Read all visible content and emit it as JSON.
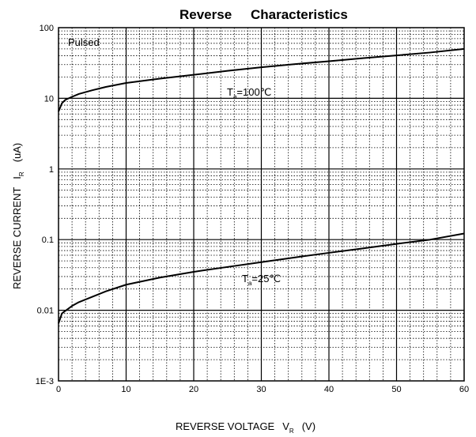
{
  "chart_data": {
    "type": "line",
    "title_left": "Reverse",
    "title_right": "Characteristics",
    "xlabel": "REVERSE VOLTAGE",
    "xlabel_symbol": "V",
    "xlabel_sub": "R",
    "xlabel_unit": "(V)",
    "ylabel": "REVERSE CURRENT",
    "ylabel_symbol": "I",
    "ylabel_sub": "R",
    "ylabel_unit": "(uA)",
    "xlim": [
      0,
      60
    ],
    "ylim": [
      0.001,
      100
    ],
    "yscale": "log",
    "grid": true,
    "x_ticks": [
      "0",
      "10",
      "20",
      "30",
      "40",
      "50",
      "60"
    ],
    "y_ticks": [
      "1E-3",
      "0.01",
      "0.1",
      "1",
      "10",
      "100"
    ],
    "annotations": {
      "pulsed": "Pulsed",
      "label_100": {
        "pre": "T",
        "sub": "a",
        "post": "=100℃"
      },
      "label_25": {
        "pre": "T",
        "sub": "a",
        "post": "=25℃"
      }
    },
    "series": [
      {
        "x": [
          0,
          0.5,
          1,
          2,
          3,
          5,
          7,
          10,
          15,
          20,
          25,
          30,
          35,
          40,
          45,
          50,
          55,
          60
        ],
        "values": [
          6.5,
          8.5,
          9.5,
          10.5,
          11.5,
          13.0,
          14.5,
          16.5,
          19.0,
          21.5,
          24.5,
          27.5,
          30.5,
          33.5,
          37.0,
          40.5,
          44.5,
          50.0
        ]
      },
      {
        "x": [
          0,
          0.5,
          1,
          2,
          3,
          5,
          7,
          10,
          15,
          20,
          25,
          30,
          35,
          40,
          45,
          50,
          55,
          60
        ],
        "values": [
          0.0065,
          0.009,
          0.0098,
          0.0115,
          0.013,
          0.0155,
          0.0185,
          0.023,
          0.029,
          0.035,
          0.041,
          0.048,
          0.056,
          0.065,
          0.075,
          0.087,
          0.1,
          0.122
        ]
      }
    ]
  }
}
